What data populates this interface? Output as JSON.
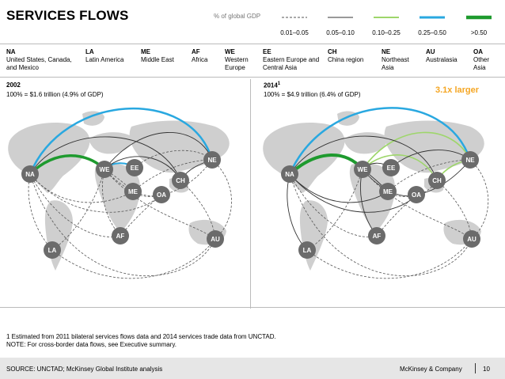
{
  "title": "SERVICES FLOWS",
  "legend": {
    "caption": "% of global GDP",
    "items": [
      {
        "label": "0.01–0.05",
        "color": "#555555",
        "style": "dashed"
      },
      {
        "label": "0.05–0.10",
        "color": "#333333",
        "style": "solid-thin"
      },
      {
        "label": "0.10–0.25",
        "color": "#9ed66b",
        "style": "solid"
      },
      {
        "label": "0.25–0.50",
        "color": "#29a8e0",
        "style": "solid"
      },
      {
        "label": ">0.50",
        "color": "#1e9a2e",
        "style": "solid-thick"
      }
    ]
  },
  "regions": [
    {
      "code": "NA",
      "name": "United States, Canada, and Mexico"
    },
    {
      "code": "LA",
      "name": "Latin America"
    },
    {
      "code": "ME",
      "name": "Middle East"
    },
    {
      "code": "AF",
      "name": "Africa"
    },
    {
      "code": "WE",
      "name": "Western Europe"
    },
    {
      "code": "EE",
      "name": "Eastern Europe and Central Asia"
    },
    {
      "code": "CH",
      "name": "China region"
    },
    {
      "code": "NE",
      "name": "Northeast Asia"
    },
    {
      "code": "AU",
      "name": "Australasia"
    },
    {
      "code": "OA",
      "name": "Other Asia"
    }
  ],
  "panels": [
    {
      "year": "2002",
      "superscript": "",
      "subtitle": "100% = $1.6 trillion (4.9% of GDP)"
    },
    {
      "year": "2014",
      "superscript": "1",
      "subtitle": "100% = $4.9 trillion (6.4% of GDP)",
      "callout": "3.1x larger"
    }
  ],
  "footnote": {
    "line1": "1 Estimated from 2011 bilateral services flows data and 2014 services trade data from UNCTAD.",
    "line2": "NOTE: For cross-border data flows, see Executive summary."
  },
  "source": "SOURCE: UNCTAD; McKinsey Global Institute analysis",
  "company": "McKinsey & Company",
  "page": "10",
  "colors": {
    "node": "#6b6b6b",
    "node_text": "#ffffff",
    "map": "#cfcfcf",
    "accent": "#f5a623"
  }
}
